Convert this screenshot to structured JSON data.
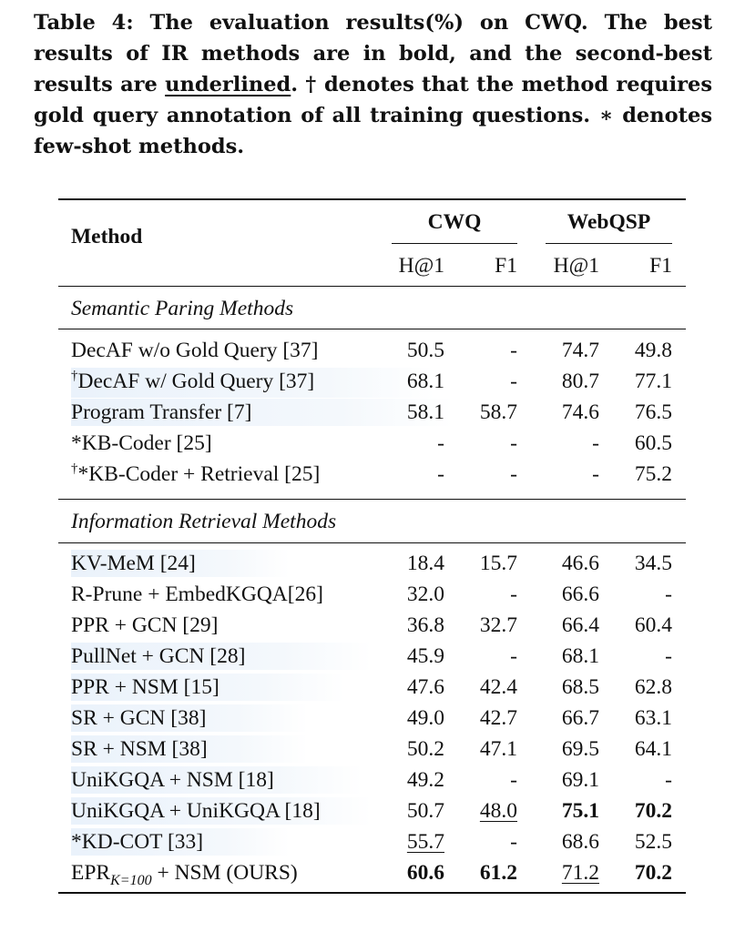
{
  "caption": {
    "part1": "Table 4: The evaluation results(%) on CWQ. The best results of IR methods are in bold, and the second-best results are ",
    "underlined_word": "underlined",
    "part2": ". † denotes that the method requires gold query annotation of all training questions. ∗ denotes few-shot methods."
  },
  "table": {
    "method_header": "Method",
    "group_headers": [
      "CWQ",
      "WebQSP"
    ],
    "sub_headers": [
      "H@1",
      "F1",
      "H@1",
      "F1"
    ],
    "sections": [
      {
        "title": "Semantic Paring Methods",
        "rows": [
          {
            "prefix": "",
            "method": "DecAF w/o Gold Query [37]",
            "cells": [
              "50.5",
              "-",
              "74.7",
              "49.8"
            ]
          },
          {
            "prefix": "†",
            "method": "DecAF w/ Gold Query [37]",
            "cells": [
              "68.1",
              "-",
              "80.7",
              "77.1"
            ]
          },
          {
            "prefix": "",
            "method": "Program Transfer [7]",
            "cells": [
              "58.1",
              "58.7",
              "74.6",
              "76.5"
            ]
          },
          {
            "prefix": "",
            "method": "*KB-Coder [25]",
            "cells": [
              "-",
              "-",
              "-",
              "60.5"
            ]
          },
          {
            "prefix": "†",
            "method": "*KB-Coder + Retrieval [25]",
            "cells": [
              "-",
              "-",
              "-",
              "75.2"
            ]
          }
        ]
      },
      {
        "title": "Information Retrieval Methods",
        "rows": [
          {
            "prefix": "",
            "method": "KV-MeM [24]",
            "cells": [
              "18.4",
              "15.7",
              "46.6",
              "34.5"
            ]
          },
          {
            "prefix": "",
            "method": "R-Prune + EmbedKGQA[26]",
            "cells": [
              "32.0",
              "-",
              "66.6",
              "-"
            ]
          },
          {
            "prefix": "",
            "method": "PPR + GCN [29]",
            "cells": [
              "36.8",
              "32.7",
              "66.4",
              "60.4"
            ]
          },
          {
            "prefix": "",
            "method": "PullNet + GCN [28]",
            "cells": [
              "45.9",
              "-",
              "68.1",
              "-"
            ]
          },
          {
            "prefix": "",
            "method": "PPR + NSM [15]",
            "cells": [
              "47.6",
              "42.4",
              "68.5",
              "62.8"
            ]
          },
          {
            "prefix": "",
            "method": "SR + GCN [38]",
            "cells": [
              "49.0",
              "42.7",
              "66.7",
              "63.1"
            ]
          },
          {
            "prefix": "",
            "method": "SR + NSM [38]",
            "cells": [
              "50.2",
              "47.1",
              "69.5",
              "64.1"
            ]
          },
          {
            "prefix": "",
            "method": "UniKGQA + NSM [18]",
            "cells": [
              "49.2",
              "-",
              "69.1",
              "-"
            ]
          },
          {
            "prefix": "",
            "method": "UniKGQA + UniKGQA [18]",
            "cells": [
              "50.7",
              "48.0",
              "75.1",
              "70.2"
            ]
          },
          {
            "prefix": "",
            "method": "*KD-COT [33]",
            "cells": [
              "55.7",
              "-",
              "68.6",
              "52.5"
            ]
          },
          {
            "prefix": "",
            "method_main": "EPR",
            "method_sub": "K=100",
            "method_rest": " + NSM (OURS)",
            "cells": [
              "60.6",
              "61.2",
              "71.2",
              "70.2"
            ]
          }
        ]
      }
    ]
  }
}
